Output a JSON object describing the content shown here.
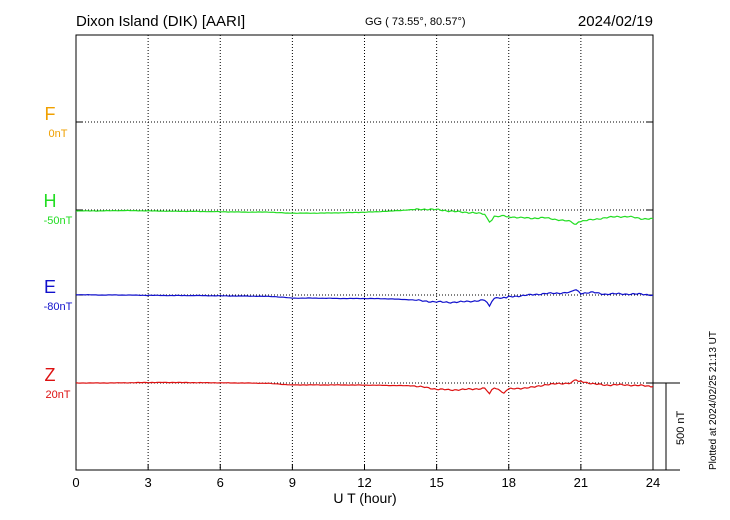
{
  "header": {
    "station": "Dixon Island (DIK)  [AARI]",
    "coords": "GG ( 73.55°,  80.57°)",
    "date": "2024/02/19"
  },
  "side": {
    "plotted": "Plotted at 2024/02/25 21:13 UT",
    "scale_label": "500 nT"
  },
  "chart_data": {
    "type": "line",
    "xlabel": "U T (hour)",
    "xlim": [
      0,
      24
    ],
    "xticks": [
      "0",
      "3",
      "6",
      "9",
      "12",
      "15",
      "18",
      "21",
      "24"
    ],
    "grid": true,
    "scale_bar_nT": 500,
    "series": [
      {
        "name": "F",
        "baseline_label": "0nT",
        "color": "#f0a000",
        "x": [],
        "y": []
      },
      {
        "name": "H",
        "baseline_label": "-50nT",
        "color": "#22dd22",
        "x": [
          0,
          1,
          2,
          3,
          4,
          5,
          6,
          7,
          8,
          8.8,
          9,
          10,
          11,
          12,
          13,
          14,
          14.5,
          15,
          15.5,
          16,
          16.5,
          17,
          17.2,
          17.4,
          17.8,
          18,
          18.5,
          19,
          19.5,
          20,
          20.5,
          20.8,
          21,
          21.5,
          22,
          22.5,
          23,
          23.5,
          24
        ],
        "y": [
          -55,
          -55,
          -53,
          -55,
          -57,
          -58,
          -60,
          -62,
          -62,
          -68,
          -68,
          -68,
          -66,
          -63,
          -57,
          -48,
          -45,
          -48,
          -55,
          -62,
          -65,
          -75,
          -120,
          -90,
          -85,
          -88,
          -95,
          -97,
          -95,
          -105,
          -115,
          -130,
          -115,
          -105,
          -95,
          -88,
          -88,
          -100,
          -100
        ]
      },
      {
        "name": "E",
        "baseline_label": "-80nT",
        "color": "#1111cc",
        "x": [
          0,
          1,
          2,
          3,
          4,
          5,
          6,
          7,
          8,
          8.8,
          9,
          10,
          11,
          12,
          13,
          14,
          14.5,
          15,
          15.5,
          16,
          16.5,
          17,
          17.2,
          17.4,
          17.8,
          18,
          18.5,
          19,
          19.5,
          20,
          20.5,
          20.8,
          21,
          21.5,
          22,
          22.5,
          23,
          23.5,
          24
        ],
        "y": [
          -78,
          -80,
          -80,
          -82,
          -83,
          -83,
          -85,
          -86,
          -88,
          -95,
          -98,
          -98,
          -100,
          -100,
          -102,
          -108,
          -115,
          -120,
          -122,
          -120,
          -115,
          -110,
          -140,
          -100,
          -95,
          -90,
          -85,
          -78,
          -72,
          -70,
          -65,
          -50,
          -70,
          -65,
          -75,
          -73,
          -75,
          -75,
          -80
        ]
      },
      {
        "name": "Z",
        "baseline_label": "20nT",
        "color": "#dd1111",
        "x": [
          0,
          1,
          2,
          3,
          4,
          5,
          6,
          7,
          8,
          8.8,
          9,
          10,
          11,
          12,
          13,
          14,
          14.5,
          15,
          15.5,
          16,
          16.5,
          17,
          17.2,
          17.4,
          17.8,
          18,
          18.5,
          19,
          19.5,
          20,
          20.5,
          20.8,
          21,
          21.5,
          22,
          22.5,
          23,
          23.5,
          24
        ],
        "y": [
          20,
          20,
          21,
          23,
          23,
          22,
          21,
          20,
          18,
          10,
          9,
          9,
          9,
          8,
          6,
          4,
          -5,
          -15,
          -20,
          -18,
          -15,
          -10,
          -40,
          -5,
          -35,
          -15,
          -10,
          -5,
          10,
          15,
          20,
          35,
          30,
          15,
          8,
          10,
          8,
          5,
          0
        ]
      }
    ]
  }
}
